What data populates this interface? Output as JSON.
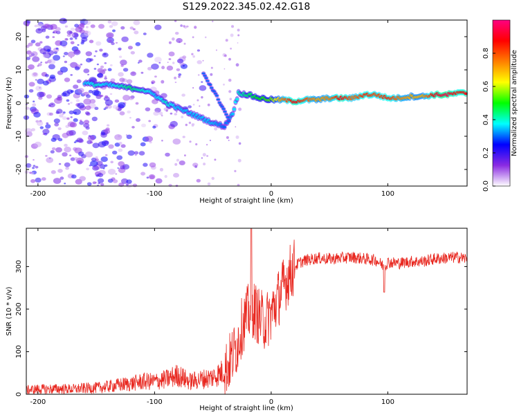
{
  "title": "S129.2022.345.02.42.G18",
  "chart_data": [
    {
      "type": "heatmap",
      "xlabel": "Height of straight line (km)",
      "ylabel": "Frequency (Hz)",
      "xlim": [
        -210,
        168
      ],
      "ylim": [
        -25,
        25
      ],
      "x_ticks": [
        -200,
        -100,
        0,
        100
      ],
      "y_ticks": [
        -20,
        -10,
        0,
        10,
        20
      ],
      "colorbar": {
        "label": "Normalized spectral amplitude",
        "range": [
          0,
          1
        ],
        "ticks": [
          "0.0",
          "0.2",
          "0.4",
          "0.6",
          "0.8"
        ],
        "colors": [
          "#ffffff",
          "#8a2be2",
          "#0000ff",
          "#00ffff",
          "#00ff00",
          "#ffff00",
          "#ff7f00",
          "#ff0000",
          "#ff0080"
        ]
      },
      "ridge": [
        {
          "x": -160,
          "y": 6,
          "amp": 0.35
        },
        {
          "x": -150,
          "y": 5.5,
          "amp": 0.4
        },
        {
          "x": -140,
          "y": 5.5,
          "amp": 0.35
        },
        {
          "x": -130,
          "y": 5,
          "amp": 0.4
        },
        {
          "x": -120,
          "y": 4.5,
          "amp": 0.45
        },
        {
          "x": -110,
          "y": 4,
          "amp": 0.4
        },
        {
          "x": -100,
          "y": 2.5,
          "amp": 0.35
        },
        {
          "x": -90,
          "y": 0,
          "amp": 0.4
        },
        {
          "x": -80,
          "y": -1.5,
          "amp": 0.35
        },
        {
          "x": -70,
          "y": -3,
          "amp": 0.35
        },
        {
          "x": -60,
          "y": -4.5,
          "amp": 0.35
        },
        {
          "x": -50,
          "y": -6,
          "amp": 0.35
        },
        {
          "x": -40,
          "y": -7,
          "amp": 0.3
        },
        {
          "x": -33,
          "y": -3,
          "amp": 0.35
        },
        {
          "x": -28,
          "y": 3,
          "amp": 0.4
        },
        {
          "x": -20,
          "y": 2.5,
          "amp": 0.45
        },
        {
          "x": -10,
          "y": 1.5,
          "amp": 0.5
        },
        {
          "x": 0,
          "y": 1,
          "amp": 0.55
        },
        {
          "x": 10,
          "y": 1,
          "amp": 0.75
        },
        {
          "x": 20,
          "y": 0.5,
          "amp": 0.9
        },
        {
          "x": 30,
          "y": 1,
          "amp": 0.8
        },
        {
          "x": 40,
          "y": 1,
          "amp": 0.7
        },
        {
          "x": 50,
          "y": 1.5,
          "amp": 0.75
        },
        {
          "x": 60,
          "y": 1.5,
          "amp": 0.9
        },
        {
          "x": 70,
          "y": 1.5,
          "amp": 0.75
        },
        {
          "x": 80,
          "y": 2.5,
          "amp": 0.85
        },
        {
          "x": 90,
          "y": 2.5,
          "amp": 0.8
        },
        {
          "x": 100,
          "y": 1.5,
          "amp": 0.85
        },
        {
          "x": 110,
          "y": 1.5,
          "amp": 0.75
        },
        {
          "x": 120,
          "y": 2,
          "amp": 0.7
        },
        {
          "x": 130,
          "y": 2,
          "amp": 0.7
        },
        {
          "x": 140,
          "y": 2.5,
          "amp": 0.9
        },
        {
          "x": 150,
          "y": 2.5,
          "amp": 0.95
        },
        {
          "x": 160,
          "y": 3,
          "amp": 0.85
        },
        {
          "x": 168,
          "y": 3,
          "amp": 0.9
        }
      ],
      "side_branch": [
        {
          "x": -58,
          "y": 9,
          "amp": 0.3
        },
        {
          "x": -50,
          "y": 4,
          "amp": 0.3
        },
        {
          "x": -42,
          "y": -1,
          "amp": 0.3
        },
        {
          "x": -35,
          "y": -6,
          "amp": 0.3
        }
      ]
    },
    {
      "type": "line",
      "xlabel": "Height of straight line (km)",
      "ylabel": "SNR (10 * v/v)",
      "xlim": [
        -210,
        168
      ],
      "ylim": [
        0,
        390
      ],
      "x_ticks": [
        -200,
        -100,
        0,
        100
      ],
      "y_ticks": [
        0,
        100,
        200,
        300
      ],
      "color": "#e8261e",
      "series": [
        {
          "x": [
            -210,
            -200,
            -190,
            -180,
            -170,
            -160,
            -150,
            -140,
            -130,
            -120,
            -110,
            -100,
            -90,
            -80,
            -70,
            -60,
            -50,
            -40,
            -35,
            -30,
            -25,
            -20,
            -15,
            -10,
            -5,
            0,
            5,
            10,
            15,
            20,
            25,
            30,
            40,
            50,
            60,
            70,
            80,
            90,
            97,
            100,
            110,
            120,
            130,
            140,
            150,
            160,
            168
          ],
          "y": [
            10,
            12,
            12,
            13,
            12,
            14,
            15,
            18,
            22,
            25,
            30,
            30,
            35,
            45,
            30,
            35,
            40,
            55,
            80,
            110,
            160,
            190,
            200,
            180,
            170,
            190,
            220,
            250,
            280,
            300,
            310,
            315,
            320,
            318,
            320,
            322,
            318,
            315,
            300,
            310,
            308,
            312,
            312,
            318,
            320,
            322,
            318
          ]
        }
      ],
      "annotations": [
        {
          "x": -17,
          "y": 390,
          "note": "spike"
        },
        {
          "x": 97,
          "y": 240,
          "note": "dip"
        }
      ]
    }
  ]
}
